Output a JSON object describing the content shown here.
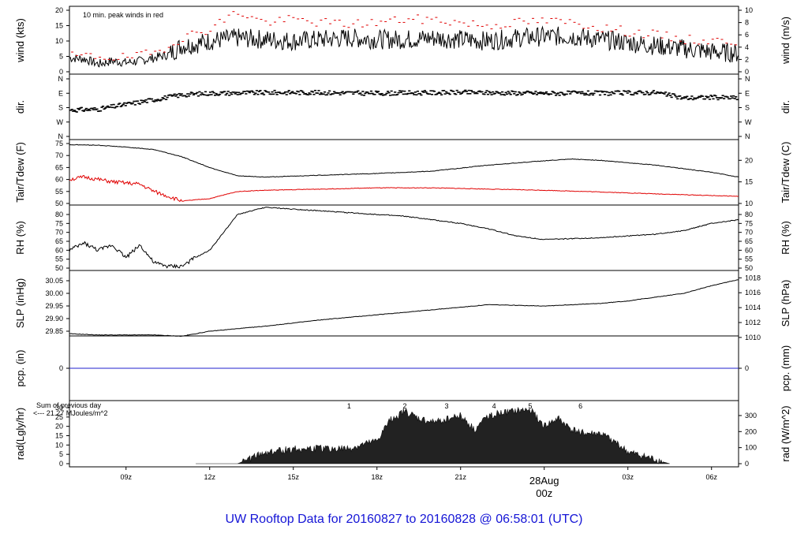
{
  "title": "UW Rooftop Data for 20160827  to  20160828 @ 06:58:01  (UTC)",
  "colors": {
    "line": "#000000",
    "peak": "#e00000",
    "dew": "#e00000",
    "pcp": "#2222cc",
    "rad_note": "#9900cc",
    "title": "#1515d6",
    "date": "#e00000"
  },
  "x_axis": {
    "tick_labels": [
      "09z",
      "12z",
      "15z",
      "18z",
      "21z",
      "00z",
      "03z",
      "06z"
    ],
    "date_label": "28Aug",
    "date_sub": "00z"
  },
  "chart_data": [
    {
      "type": "line",
      "id": "wind",
      "ylabel_left": "wind (kts)",
      "ylabel_right": "wind (m/s)",
      "left_ticks": [
        "0",
        "5",
        "10",
        "15",
        "20"
      ],
      "ylim": [
        0,
        20
      ],
      "right_ticks": [
        "0",
        "2",
        "4",
        "6",
        "8",
        "10"
      ],
      "annotation": "10 min. peak winds in red",
      "series": [
        {
          "x": [
            6.97,
            7.5,
            8.0,
            8.5,
            9.0,
            9.5,
            10.0,
            10.5,
            11.0,
            11.5,
            12.0,
            13.0,
            14.0,
            15.0,
            16.0,
            17.0,
            18.0,
            19.0,
            20.0,
            21.0,
            22.0,
            23.0,
            24.0,
            25.0,
            26.0,
            27.0,
            28.0,
            29.0,
            30.0,
            30.97
          ],
          "values": [
            4.5,
            4.2,
            2.5,
            3.5,
            3,
            3.5,
            4.5,
            5.5,
            8.5,
            9,
            10,
            11,
            10.5,
            10,
            10.5,
            11,
            10.5,
            10.5,
            11,
            10.5,
            10,
            11,
            11.5,
            11.5,
            10.5,
            9.5,
            8.5,
            7.5,
            6.5,
            6
          ]
        },
        {
          "kind": "peak",
          "x": [
            7.0,
            8.0,
            9.0,
            10.0,
            11.0,
            12.0,
            13.0,
            14.0,
            15.0,
            16.0,
            17.0,
            18.0,
            19.0,
            20.0,
            21.0,
            22.0,
            23.0,
            24.0,
            25.0,
            26.0,
            27.0,
            28.0,
            29.0,
            30.0
          ],
          "values": [
            5,
            5,
            4.5,
            6,
            11,
            14,
            19.5,
            16,
            17,
            16,
            15.5,
            16,
            17,
            17,
            16,
            15,
            16,
            16.5,
            16,
            14.5,
            13,
            12,
            10.5,
            10
          ]
        }
      ]
    },
    {
      "type": "scatter",
      "id": "dir",
      "ylabel": "dir.",
      "tick_labels": [
        "N",
        "W",
        "S",
        "E",
        "N"
      ],
      "series": [
        {
          "x": [
            6.97,
            8,
            9,
            10,
            11,
            12,
            15,
            18,
            21,
            24,
            26,
            27,
            28,
            29,
            30,
            30.97
          ],
          "values": [
            165,
            170,
            200,
            230,
            260,
            270,
            275,
            270,
            275,
            270,
            270,
            272,
            275,
            240,
            245,
            240
          ]
        }
      ]
    },
    {
      "type": "line",
      "id": "temp",
      "ylabel_left": "Tair/Tdew (F)",
      "ylabel_right": "Tair/Tdew (C)",
      "left_ticks": [
        "50",
        "55",
        "60",
        "65",
        "70",
        "75"
      ],
      "ylim": [
        50,
        75
      ],
      "right_ticks": [
        "10",
        "15",
        "20"
      ],
      "series": [
        {
          "name": "Tair",
          "x": [
            6.97,
            8,
            9,
            10,
            11,
            12,
            13,
            14,
            16,
            18,
            20,
            22,
            24,
            25,
            26,
            28,
            30,
            30.97
          ],
          "values": [
            74.5,
            74.3,
            73.5,
            72.5,
            69.5,
            65,
            61.5,
            61,
            61.8,
            62.5,
            63.5,
            66,
            67.8,
            68.5,
            68,
            66,
            63,
            61
          ]
        },
        {
          "name": "Tdew",
          "x": [
            6.97,
            7.5,
            8.5,
            9.5,
            10,
            11,
            12,
            13,
            14,
            16,
            18,
            20,
            22,
            24,
            26,
            28,
            30,
            30.97
          ],
          "values": [
            60,
            61,
            59,
            58,
            55,
            51,
            52,
            55,
            55.5,
            56,
            56.5,
            56.5,
            56,
            55.5,
            54.8,
            54,
            53.3,
            53
          ]
        }
      ]
    },
    {
      "type": "line",
      "id": "rh",
      "ylabel": "RH (%)",
      "left_ticks": [
        "50",
        "55",
        "60",
        "65",
        "70",
        "75",
        "80"
      ],
      "ylim": [
        50,
        82
      ],
      "series": [
        {
          "x": [
            6.97,
            7.5,
            8,
            8.5,
            9,
            9.5,
            10,
            10.5,
            11,
            11.5,
            12,
            13,
            14,
            16,
            18,
            19,
            20,
            21,
            22,
            23,
            24,
            25,
            26,
            27,
            28,
            29,
            30,
            30.97
          ],
          "values": [
            60,
            64,
            60,
            63,
            56,
            63,
            53,
            51,
            51,
            56,
            60,
            80,
            84,
            82,
            80,
            79,
            77,
            75,
            72,
            68,
            66,
            66.5,
            67,
            68,
            69,
            71,
            75,
            77
          ]
        }
      ]
    },
    {
      "type": "line",
      "id": "slp",
      "ylabel_left": "SLP (inHg)",
      "ylabel_right": "SLP (hPa)",
      "left_ticks": [
        "29.85",
        "29.90",
        "29.95",
        "30.00",
        "30.05"
      ],
      "ylim": [
        29.83,
        30.07
      ],
      "right_ticks": [
        "1010",
        "1012",
        "1014",
        "1016",
        "1018"
      ],
      "series": [
        {
          "x": [
            6.97,
            8,
            10,
            11,
            12,
            14,
            16,
            18,
            20,
            22,
            24,
            25,
            26,
            27,
            28,
            29,
            30,
            30.97
          ],
          "values": [
            29.84,
            29.835,
            29.835,
            29.83,
            29.85,
            29.87,
            29.895,
            29.915,
            29.935,
            29.955,
            29.95,
            29.955,
            29.96,
            29.97,
            29.985,
            30.0,
            30.03,
            30.055
          ]
        }
      ]
    },
    {
      "type": "line",
      "id": "pcp",
      "ylabel_left": "pcp. (in)",
      "ylabel_right": "pcp. (mm)",
      "left_ticks": [
        "0"
      ],
      "right_ticks": [
        "0"
      ],
      "series": [
        {
          "x": [
            6.97,
            30.97
          ],
          "values": [
            0,
            0
          ]
        }
      ]
    },
    {
      "type": "area",
      "id": "rad",
      "ylabel_left": "rad(Lgly/hr)",
      "ylabel_right": "rad (W/m^2)",
      "left_ticks": [
        "0",
        "5",
        "10",
        "15",
        "20",
        "25",
        "30"
      ],
      "ylim": [
        0,
        30
      ],
      "right_ticks": [
        "0",
        "100",
        "200",
        "300"
      ],
      "note_line1": "Sum of previous day",
      "note_line2": "<--- 21.27 MJoules/m^2",
      "markers": [
        "1",
        "2",
        "3",
        "4",
        "5",
        "6"
      ],
      "series": [
        {
          "x": [
            11.5,
            13,
            13.5,
            14,
            15,
            16,
            17,
            18,
            18.5,
            19,
            19.5,
            20,
            21,
            21.5,
            22,
            23,
            23.5,
            24,
            24.5,
            25,
            25.5,
            26,
            26.5,
            27,
            28,
            28.5
          ],
          "values": [
            0,
            0,
            3,
            6,
            8,
            8,
            8,
            12,
            24,
            28,
            24,
            22,
            26,
            18,
            26,
            28,
            29,
            20,
            24,
            18,
            16,
            16,
            12,
            6,
            2,
            0
          ]
        }
      ]
    }
  ]
}
